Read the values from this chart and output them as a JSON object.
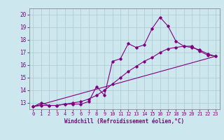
{
  "xlabel": "Windchill (Refroidissement éolien,°C)",
  "ylabel": "",
  "bg_color": "#cce8ee",
  "line_color": "#800080",
  "grid_color": "#b0c8d0",
  "xlim": [
    -0.5,
    23.5
  ],
  "ylim": [
    12.5,
    20.5
  ],
  "xticks": [
    0,
    1,
    2,
    3,
    4,
    5,
    6,
    7,
    8,
    9,
    10,
    11,
    12,
    13,
    14,
    15,
    16,
    17,
    18,
    19,
    20,
    21,
    22,
    23
  ],
  "yticks": [
    13,
    14,
    15,
    16,
    17,
    18,
    19,
    20
  ],
  "line1_x": [
    0,
    1,
    2,
    3,
    4,
    5,
    6,
    7,
    8,
    9,
    10,
    11,
    12,
    13,
    14,
    15,
    16,
    17,
    18,
    19,
    20,
    21,
    22,
    23
  ],
  "line1_y": [
    12.7,
    13.0,
    12.8,
    12.8,
    12.9,
    12.9,
    12.9,
    13.1,
    14.3,
    13.6,
    16.3,
    16.5,
    17.7,
    17.4,
    17.6,
    18.9,
    19.8,
    19.1,
    17.9,
    17.5,
    17.5,
    17.1,
    16.8,
    16.7
  ],
  "line2_x": [
    0,
    1,
    2,
    3,
    4,
    5,
    6,
    7,
    8,
    9,
    10,
    11,
    12,
    13,
    14,
    15,
    16,
    17,
    18,
    19,
    20,
    21,
    22,
    23
  ],
  "line2_y": [
    12.7,
    12.8,
    12.8,
    12.8,
    12.9,
    13.0,
    13.1,
    13.3,
    13.6,
    14.0,
    14.5,
    15.0,
    15.5,
    15.9,
    16.3,
    16.6,
    17.0,
    17.3,
    17.4,
    17.5,
    17.4,
    17.2,
    16.9,
    16.7
  ],
  "line3_x": [
    0,
    23
  ],
  "line3_y": [
    12.7,
    16.7
  ]
}
